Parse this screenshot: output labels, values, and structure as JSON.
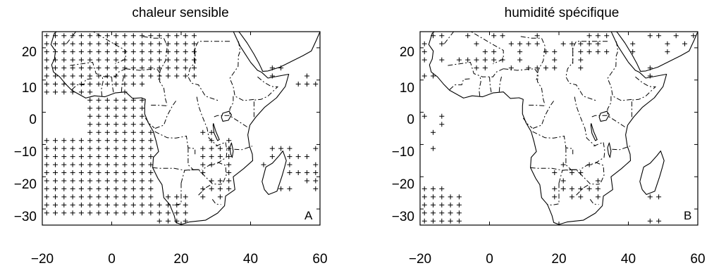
{
  "panels": [
    {
      "title": "chaleur sensible",
      "letter": "A",
      "region": "stippled",
      "x_ticks": [
        "−20",
        "0",
        "20",
        "40",
        "60"
      ],
      "y_ticks": [
        "20",
        "10",
        "0",
        "−10",
        "−20",
        "−30"
      ]
    },
    {
      "title": "humidité spécifique",
      "letter": "B",
      "region": "sparse",
      "x_ticks": [
        "−20",
        "0",
        "20",
        "40",
        "60"
      ],
      "y_ticks": [
        "20",
        "10",
        "0",
        "−10",
        "−20",
        "−30"
      ]
    }
  ],
  "map": {
    "lon_range": [
      -20,
      60
    ],
    "lat_range": [
      -35,
      25
    ],
    "grid_step_deg": 2.5,
    "marker": "plus",
    "ink_color": "#000000",
    "background_color": "#ffffff"
  }
}
